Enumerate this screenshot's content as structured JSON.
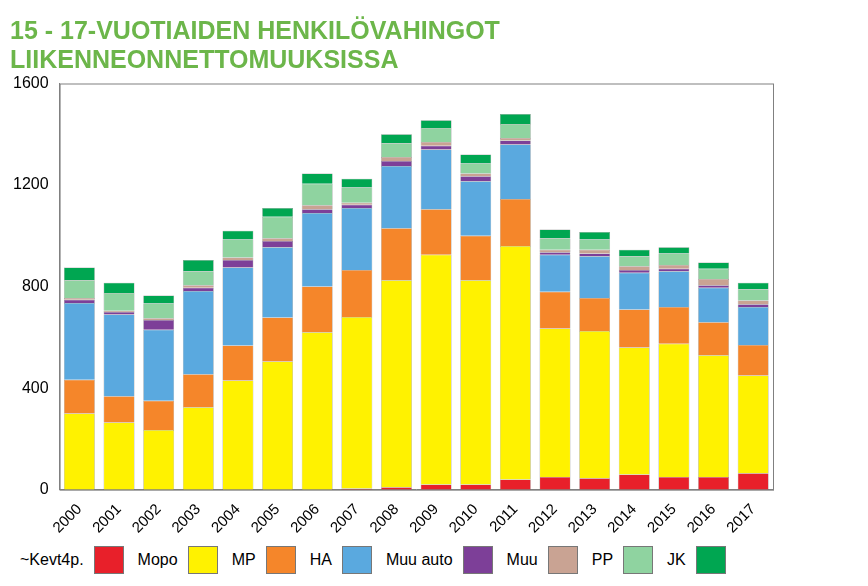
{
  "chart_data": {
    "type": "bar",
    "stacked": true,
    "grid": false,
    "legend": "bottom",
    "title": [
      "15 - 17-VUOTIAIDEN HENKILÖVAHINGOT",
      "LIIKENNEONNETTOMUUKSISSA"
    ],
    "categories": [
      "2000",
      "2001",
      "2002",
      "2003",
      "2004",
      "2005",
      "2006",
      "2007",
      "2008",
      "2009",
      "2010",
      "2011",
      "2012",
      "2013",
      "2014",
      "2015",
      "2016",
      "2017"
    ],
    "ylim": [
      0,
      1600
    ],
    "yticks": [
      0,
      400,
      800,
      1200,
      1600
    ],
    "series": [
      {
        "name": "~Kevt4p.",
        "color": "#e8202a",
        "values": [
          0,
          0,
          0,
          0,
          0,
          0,
          0,
          5,
          10,
          20,
          20,
          40,
          50,
          45,
          60,
          50,
          50,
          65
        ]
      },
      {
        "name": "Mopo",
        "color": "#fff200",
        "values": [
          300,
          265,
          235,
          325,
          430,
          505,
          620,
          675,
          815,
          905,
          805,
          920,
          585,
          580,
          500,
          525,
          480,
          385
        ]
      },
      {
        "name": "MP",
        "color": "#f5862a",
        "values": [
          133,
          103,
          115,
          130,
          138,
          173,
          180,
          185,
          205,
          180,
          175,
          185,
          145,
          130,
          150,
          145,
          130,
          120
        ]
      },
      {
        "name": "HA",
        "color": "#5aa9df",
        "values": [
          302,
          322,
          280,
          328,
          307,
          277,
          290,
          245,
          245,
          235,
          215,
          215,
          145,
          165,
          145,
          140,
          135,
          150
        ]
      },
      {
        "name": "Muu auto",
        "color": "#7d3f98",
        "values": [
          13,
          10,
          38,
          12,
          30,
          25,
          15,
          12,
          20,
          15,
          20,
          15,
          10,
          10,
          10,
          10,
          10,
          10
        ]
      },
      {
        "name": "Muu",
        "color": "#c9a393",
        "values": [
          7,
          5,
          7,
          10,
          10,
          10,
          15,
          8,
          15,
          15,
          10,
          10,
          10,
          15,
          15,
          15,
          25,
          15
        ]
      },
      {
        "name": "PP",
        "color": "#8fd3a0",
        "values": [
          70,
          70,
          58,
          55,
          70,
          85,
          85,
          60,
          55,
          55,
          40,
          55,
          45,
          40,
          40,
          45,
          40,
          45
        ]
      },
      {
        "name": "JK",
        "color": "#00a651",
        "values": [
          50,
          40,
          32,
          45,
          35,
          35,
          40,
          35,
          35,
          30,
          35,
          40,
          35,
          30,
          25,
          25,
          25,
          25
        ]
      }
    ]
  }
}
